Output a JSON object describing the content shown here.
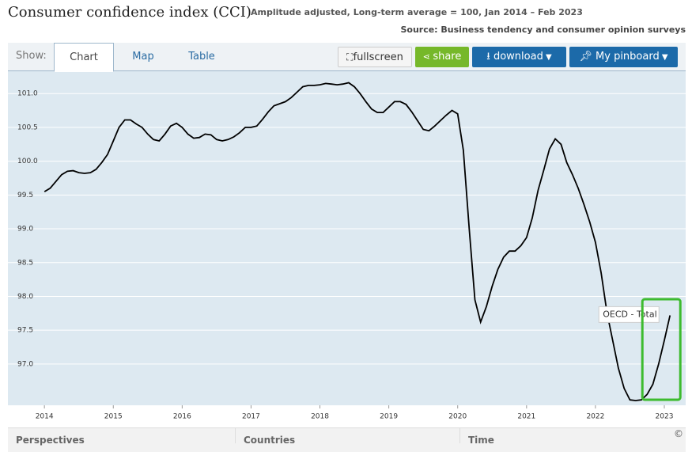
{
  "header": {
    "title": "Consumer confidence index (CCI)",
    "subtitle": "Amplitude adjusted, Long-term average = 100, Jan 2014 – Feb 2023",
    "source": "Source: Business tendency and consumer opinion surveys"
  },
  "toolbar": {
    "show_label": "Show:",
    "tabs": [
      "Chart",
      "Map",
      "Table"
    ],
    "buttons": [
      "fullscreen",
      "share",
      "download",
      "My pinboard"
    ]
  },
  "bottom_panel": {
    "sections": [
      "Perspectives",
      "Countries",
      "Time"
    ],
    "copyright": "©"
  },
  "chart_data": {
    "type": "line",
    "x": [
      2014,
      2014.083,
      2014.167,
      2014.25,
      2014.333,
      2014.417,
      2014.5,
      2014.583,
      2014.667,
      2014.75,
      2014.833,
      2014.917,
      2015,
      2015.083,
      2015.167,
      2015.25,
      2015.333,
      2015.417,
      2015.5,
      2015.583,
      2015.667,
      2015.75,
      2015.833,
      2015.917,
      2016,
      2016.083,
      2016.167,
      2016.25,
      2016.333,
      2016.417,
      2016.5,
      2016.583,
      2016.667,
      2016.75,
      2016.833,
      2016.917,
      2017,
      2017.083,
      2017.167,
      2017.25,
      2017.333,
      2017.417,
      2017.5,
      2017.583,
      2017.667,
      2017.75,
      2017.833,
      2017.917,
      2018,
      2018.083,
      2018.167,
      2018.25,
      2018.333,
      2018.417,
      2018.5,
      2018.583,
      2018.667,
      2018.75,
      2018.833,
      2018.917,
      2019,
      2019.083,
      2019.167,
      2019.25,
      2019.333,
      2019.417,
      2019.5,
      2019.583,
      2019.667,
      2019.75,
      2019.833,
      2019.917,
      2020,
      2020.083,
      2020.167,
      2020.25,
      2020.333,
      2020.417,
      2020.5,
      2020.583,
      2020.667,
      2020.75,
      2020.833,
      2020.917,
      2021,
      2021.083,
      2021.167,
      2021.25,
      2021.333,
      2021.417,
      2021.5,
      2021.583,
      2021.667,
      2021.75,
      2021.833,
      2021.917,
      2022,
      2022.083,
      2022.167,
      2022.25,
      2022.333,
      2022.417,
      2022.5,
      2022.583,
      2022.667,
      2022.75,
      2022.833,
      2022.917,
      2023,
      2023.083
    ],
    "series": [
      {
        "name": "OECD - Total",
        "color": "#000000",
        "values": [
          99.55,
          99.6,
          99.7,
          99.8,
          99.85,
          99.86,
          99.83,
          99.82,
          99.83,
          99.88,
          99.98,
          100.1,
          100.3,
          100.5,
          100.61,
          100.61,
          100.55,
          100.5,
          100.4,
          100.32,
          100.3,
          100.4,
          100.52,
          100.56,
          100.5,
          100.4,
          100.34,
          100.35,
          100.4,
          100.39,
          100.32,
          100.3,
          100.32,
          100.36,
          100.42,
          100.5,
          100.5,
          100.52,
          100.62,
          100.73,
          100.82,
          100.85,
          100.88,
          100.94,
          101.02,
          101.1,
          101.12,
          101.12,
          101.13,
          101.15,
          101.14,
          101.13,
          101.14,
          101.16,
          101.1,
          101.0,
          100.88,
          100.77,
          100.72,
          100.72,
          100.8,
          100.88,
          100.88,
          100.84,
          100.73,
          100.6,
          100.47,
          100.45,
          100.52,
          100.6,
          100.68,
          100.75,
          100.7,
          100.16,
          99.0,
          97.95,
          97.62,
          97.85,
          98.15,
          98.4,
          98.58,
          98.67,
          98.67,
          98.75,
          98.87,
          99.16,
          99.57,
          99.87,
          100.18,
          100.33,
          100.25,
          99.98,
          99.8,
          99.6,
          99.36,
          99.1,
          98.8,
          98.35,
          97.76,
          97.35,
          96.94,
          96.64,
          96.47,
          96.46,
          96.47,
          96.55,
          96.7,
          97.0,
          97.35,
          97.72
        ]
      }
    ],
    "xlim": [
      2013.47,
      2023.31
    ],
    "xticks": [
      2014,
      2015,
      2016,
      2017,
      2018,
      2019,
      2020,
      2021,
      2022,
      2023
    ],
    "ylim": [
      96.39,
      101.33
    ],
    "yticks": [
      {
        "value": 97,
        "label": "97.0"
      },
      97.5,
      {
        "value": 98,
        "label": "98.0"
      },
      98.5,
      {
        "value": 99,
        "label": "99.0"
      },
      99.5,
      {
        "value": 100,
        "label": "100.0"
      },
      100.5,
      {
        "value": 101,
        "label": "101.0"
      }
    ],
    "grid": true,
    "background": "#dde9f1",
    "highlight_color": "#3dbb2f"
  }
}
